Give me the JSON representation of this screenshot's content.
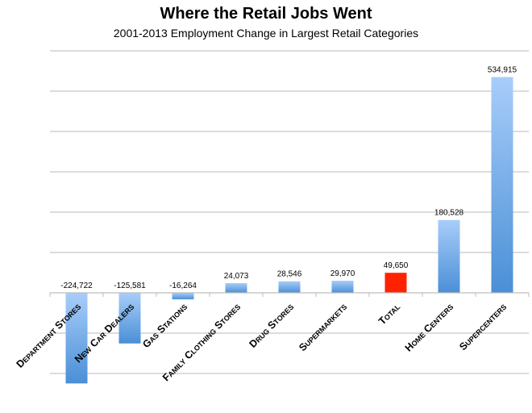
{
  "chart_data": {
    "type": "bar",
    "title": "Where the Retail Jobs Went",
    "subtitle": "2001-2013 Employment Change in Largest Retail Categories",
    "categories": [
      "Department Stores",
      "New Car Dealers",
      "Gas Stations",
      "Family Clothing Stores",
      "Drug Stores",
      "Supermarkets",
      "Total",
      "Home Centers",
      "Supercenters"
    ],
    "values": [
      -224722,
      -125581,
      -16264,
      24073,
      28546,
      29970,
      49650,
      180528,
      534915
    ],
    "data_labels": [
      "-224,722",
      "-125,581",
      "-16,264",
      "24,073",
      "28,546",
      "29,970",
      "49,650",
      "180,528",
      "534,915"
    ],
    "ylim": [
      -200000,
      600000
    ],
    "grid": true,
    "gridline_step": 100000,
    "xlabel": "",
    "ylabel": "",
    "colors": {
      "bar_top": "#a8cdfa",
      "bar_bottom": "#4a8fd6",
      "highlight": "#ff2200",
      "grid": "#c8c8c8"
    },
    "highlight_category": "Total"
  }
}
